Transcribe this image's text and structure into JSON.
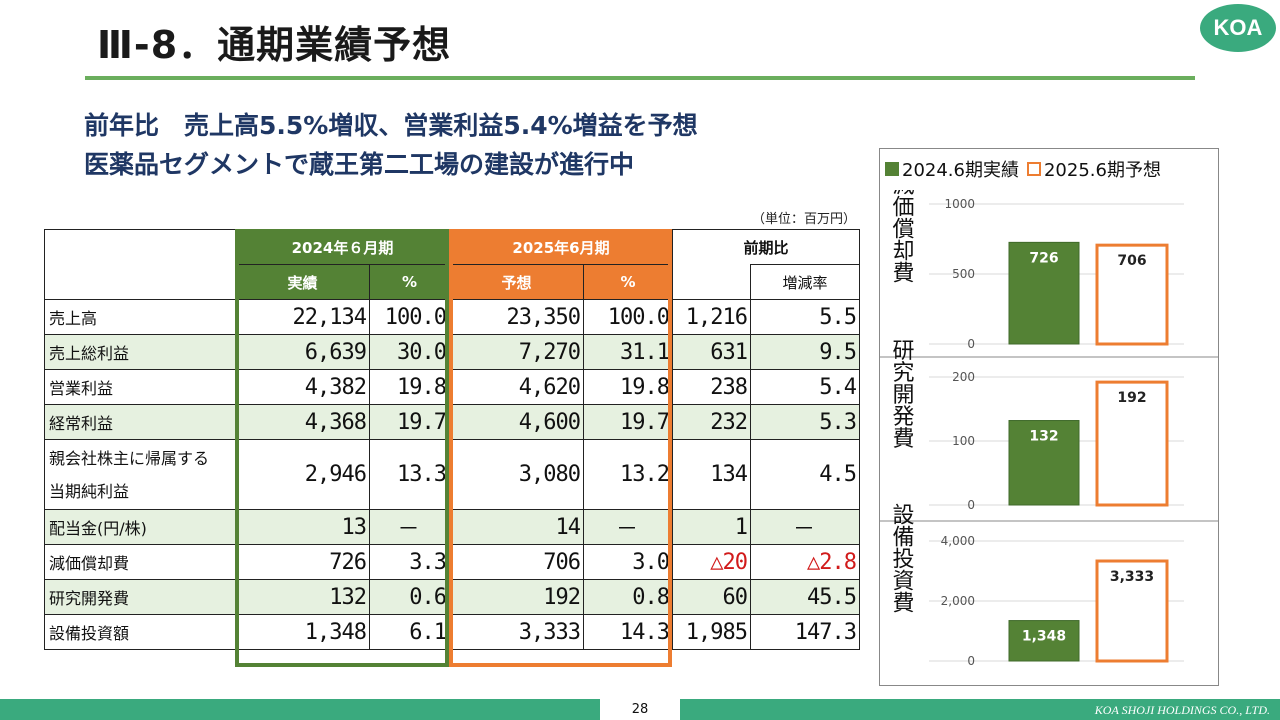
{
  "header": {
    "title": "Ⅲ-8．通期業績予想",
    "logo_text": "KOA"
  },
  "headlines": [
    "前年比　売上高5.5%増収、営業利益5.4%増益を予想",
    "医薬品セグメントで蔵王第二工場の建設が進行中"
  ],
  "unit_note": "（単位：百万円）",
  "table": {
    "group_headers": {
      "fy2024": "2024年６月期",
      "fy2025": "2025年6月期",
      "yoy": "前期比"
    },
    "sub_headers": {
      "actual": "実績",
      "pct": "%",
      "forecast": "予想",
      "pct2": "%",
      "change_rate": "増減率"
    },
    "rows": [
      {
        "label": "売上高",
        "actual": "22,134",
        "actual_pct": "100.0",
        "forecast": "23,350",
        "forecast_pct": "100.0",
        "change": "1,216",
        "rate": "5.5"
      },
      {
        "label": "売上総利益",
        "actual": "6,639",
        "actual_pct": "30.0",
        "forecast": "7,270",
        "forecast_pct": "31.1",
        "change": "631",
        "rate": "9.5"
      },
      {
        "label": "営業利益",
        "actual": "4,382",
        "actual_pct": "19.8",
        "forecast": "4,620",
        "forecast_pct": "19.8",
        "change": "238",
        "rate": "5.4"
      },
      {
        "label": "経常利益",
        "actual": "4,368",
        "actual_pct": "19.7",
        "forecast": "4,600",
        "forecast_pct": "19.7",
        "change": "232",
        "rate": "5.3"
      },
      {
        "label_line1": "親会社株主に帰属する",
        "label_line2": "当期純利益",
        "actual": "2,946",
        "actual_pct": "13.3",
        "forecast": "3,080",
        "forecast_pct": "13.2",
        "change": "134",
        "rate": "4.5"
      },
      {
        "label": "配当金(円/株)",
        "actual": "13",
        "actual_pct": "－",
        "forecast": "14",
        "forecast_pct": "－",
        "change": "1",
        "rate": "－"
      },
      {
        "label": "減価償却費",
        "actual": "726",
        "actual_pct": "3.3",
        "forecast": "706",
        "forecast_pct": "3.0",
        "change": "△20",
        "rate": "△2.8"
      },
      {
        "label": "研究開発費",
        "actual": "132",
        "actual_pct": "0.6",
        "forecast": "192",
        "forecast_pct": "0.8",
        "change": "60",
        "rate": "45.5"
      },
      {
        "label": "設備投資額",
        "actual": "1,348",
        "actual_pct": "6.1",
        "forecast": "3,333",
        "forecast_pct": "14.3",
        "change": "1,985",
        "rate": "147.3"
      }
    ]
  },
  "legend": {
    "actual": "2024.6期実績",
    "forecast": "2025.6期予想"
  },
  "colors": {
    "actual": "#548235",
    "forecast": "#ed7d31",
    "accent": "#3aaa7e"
  },
  "chart_data": [
    {
      "type": "bar",
      "title": "減価償却費",
      "categories": [
        "2024.6期実績",
        "2025.6期予想"
      ],
      "values": [
        726,
        706
      ],
      "labels": [
        "726",
        "706"
      ],
      "ylim": [
        0,
        1000
      ],
      "ticks": [
        0,
        500,
        1000
      ],
      "tick_labels": [
        "0",
        "500",
        "1000"
      ]
    },
    {
      "type": "bar",
      "title": "研究開発費",
      "categories": [
        "2024.6期実績",
        "2025.6期予想"
      ],
      "values": [
        132,
        192
      ],
      "labels": [
        "132",
        "192"
      ],
      "ylim": [
        0,
        200
      ],
      "ticks": [
        0,
        100,
        200
      ],
      "tick_labels": [
        "0",
        "100",
        "200"
      ]
    },
    {
      "type": "bar",
      "title": "設備投資費",
      "categories": [
        "2024.6期実績",
        "2025.6期予想"
      ],
      "values": [
        1348,
        3333
      ],
      "labels": [
        "1,348",
        "3,333"
      ],
      "ylim": [
        0,
        4000
      ],
      "ticks": [
        0,
        2000,
        4000
      ],
      "tick_labels": [
        "0",
        "2,000",
        "4,000"
      ]
    }
  ],
  "footer": {
    "page_number": "28",
    "company": "KOA SHOJI HOLDINGS CO., LTD."
  }
}
